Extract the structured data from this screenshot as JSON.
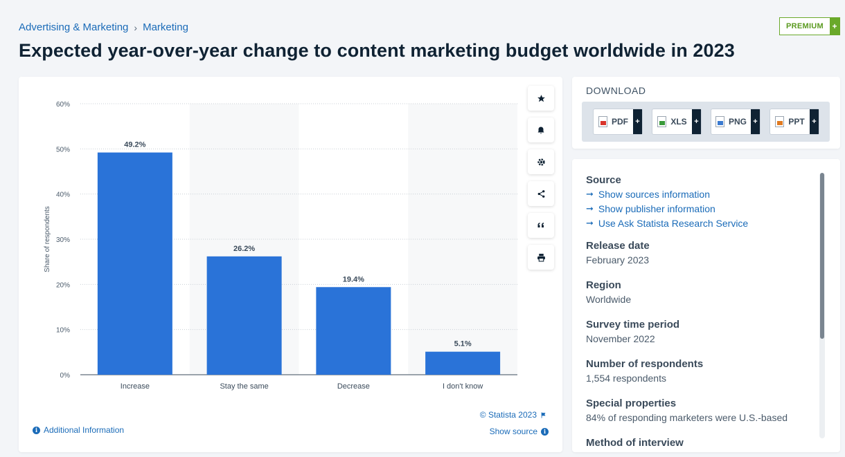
{
  "breadcrumb": {
    "parent": "Advertising & Marketing",
    "separator": "›",
    "current": "Marketing"
  },
  "title": "Expected year-over-year change to content marketing budget worldwide in 2023",
  "premium": {
    "label": "PREMIUM",
    "plus": "+"
  },
  "chart_data": {
    "type": "bar",
    "title": "",
    "xlabel": "",
    "ylabel": "Share of respondents",
    "categories": [
      "Increase",
      "Stay the same",
      "Decrease",
      "I don't know"
    ],
    "values": [
      49.2,
      26.2,
      19.4,
      5.1
    ],
    "value_labels": [
      "49.2%",
      "26.2%",
      "19.4%",
      "5.1%"
    ],
    "ylim": [
      0,
      60
    ],
    "yticks": [
      0,
      10,
      20,
      30,
      40,
      50,
      60
    ],
    "ytick_labels": [
      "0%",
      "10%",
      "20%",
      "30%",
      "40%",
      "50%",
      "60%"
    ],
    "bar_color": "#2a73d8",
    "grid": true
  },
  "tools": [
    {
      "name": "star-icon",
      "glyph": "★"
    },
    {
      "name": "bell-icon",
      "glyph": "🔔"
    },
    {
      "name": "gear-icon",
      "glyph": "⚙"
    },
    {
      "name": "share-icon",
      "glyph": "share"
    },
    {
      "name": "quote-icon",
      "glyph": "❝"
    },
    {
      "name": "print-icon",
      "glyph": "print"
    }
  ],
  "footer": {
    "copyright": "© Statista 2023",
    "additional_info": "Additional Information",
    "show_source": "Show source"
  },
  "download": {
    "title": "DOWNLOAD",
    "buttons": [
      {
        "label": "PDF",
        "color": "#d9342b"
      },
      {
        "label": "XLS",
        "color": "#3a9a3a"
      },
      {
        "label": "PNG",
        "color": "#3a7ad0"
      },
      {
        "label": "PPT",
        "color": "#e07a20"
      }
    ],
    "plus": "+"
  },
  "info": {
    "source_heading": "Source",
    "source_links": [
      "Show sources information",
      "Show publisher information",
      "Use Ask Statista Research Service"
    ],
    "arrow": "➞",
    "sections": [
      {
        "heading": "Release date",
        "value": "February 2023"
      },
      {
        "heading": "Region",
        "value": "Worldwide"
      },
      {
        "heading": "Survey time period",
        "value": "November 2022"
      },
      {
        "heading": "Number of respondents",
        "value": "1,554 respondents"
      },
      {
        "heading": "Special properties",
        "value": "84% of responding marketers were U.S.-based"
      },
      {
        "heading": "Method of interview",
        "value": ""
      }
    ]
  }
}
